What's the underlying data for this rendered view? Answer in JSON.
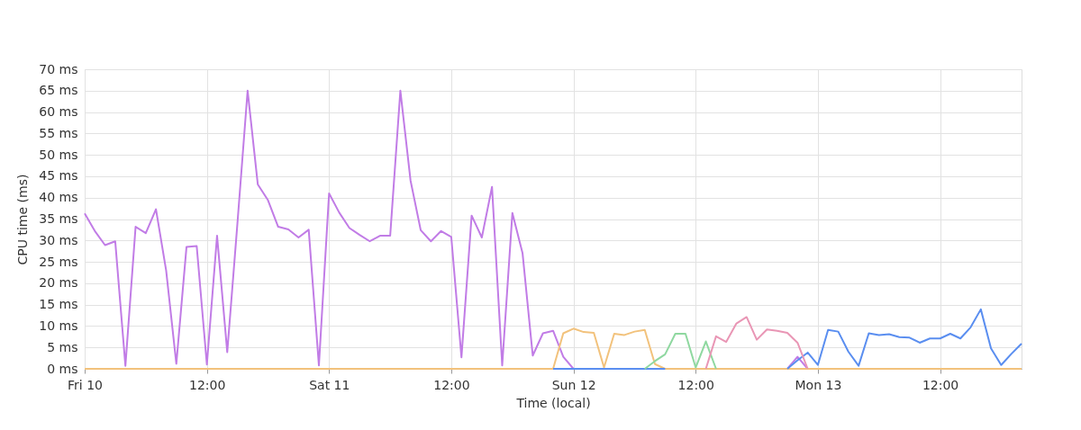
{
  "chart_data": {
    "type": "line",
    "xlabel": "Time (local)",
    "ylabel": "CPU time (ms)",
    "categories": [
      "Fri 10",
      null,
      null,
      null,
      null,
      null,
      null,
      null,
      null,
      null,
      null,
      null,
      "12:00",
      null,
      null,
      null,
      null,
      null,
      null,
      null,
      null,
      null,
      null,
      null,
      "Sat 11",
      null,
      null,
      null,
      null,
      null,
      null,
      null,
      null,
      null,
      null,
      null,
      "12:00",
      null,
      null,
      null,
      null,
      null,
      null,
      null,
      null,
      null,
      null,
      null,
      "Sun 12",
      null,
      null,
      null,
      null,
      null,
      null,
      null,
      null,
      null,
      null,
      null,
      "12:00",
      null,
      null,
      null,
      null,
      null,
      null,
      null,
      null,
      null,
      null,
      null,
      "Mon 13",
      null,
      null,
      null,
      null,
      null,
      null,
      null,
      null,
      null,
      null,
      null,
      "12:00",
      null,
      null,
      null,
      null,
      null,
      null,
      null,
      null
    ],
    "ylim": [
      0,
      70
    ],
    "yticks": [
      {
        "value": 0,
        "label": "0 ms"
      },
      {
        "value": 5,
        "label": "5 ms"
      },
      {
        "value": 10,
        "label": "10 ms"
      },
      {
        "value": 15,
        "label": "15 ms"
      },
      {
        "value": 20,
        "label": "20 ms"
      },
      {
        "value": 25,
        "label": "25 ms"
      },
      {
        "value": 30,
        "label": "30 ms"
      },
      {
        "value": 35,
        "label": "35 ms"
      },
      {
        "value": 40,
        "label": "40 ms"
      },
      {
        "value": 45,
        "label": "45 ms"
      },
      {
        "value": 50,
        "label": "50 ms"
      },
      {
        "value": 55,
        "label": "55 ms"
      },
      {
        "value": 60,
        "label": "60 ms"
      },
      {
        "value": 65,
        "label": "65 ms"
      },
      {
        "value": 70,
        "label": "70 ms"
      }
    ],
    "grid": true,
    "line_style": "solid",
    "series": [
      {
        "color": "#c17ce6",
        "values": [
          36.3,
          32.2,
          28.9,
          29.8,
          0.7,
          33.2,
          31.7,
          37.3,
          23,
          1.2,
          28.5,
          28.7,
          1.0,
          31.1,
          3.9,
          34,
          65,
          43.1,
          39.4,
          33.2,
          32.6,
          30.7,
          32.5,
          0.8,
          41.0,
          36.5,
          32.9,
          31.3,
          29.8,
          31.1,
          31.1,
          65,
          44,
          32.4,
          29.8,
          32.2,
          30.8,
          2.7,
          35.8,
          30.7,
          42.5,
          0.8,
          36.4,
          27.0,
          3.1,
          8.3,
          8.9,
          2.8,
          0,
          null,
          null,
          null,
          null,
          null,
          null,
          null,
          null,
          null,
          null,
          null,
          null,
          null,
          null,
          null,
          null,
          null,
          null,
          null,
          null,
          0,
          2.8,
          0,
          null,
          null,
          null,
          null,
          null,
          null,
          null,
          null,
          null,
          null,
          null,
          null,
          null,
          null,
          null,
          null,
          null,
          null,
          null,
          null,
          null
        ]
      },
      {
        "color": "#f2c27c",
        "values": [
          0,
          0,
          0,
          0,
          0,
          0,
          0,
          0,
          0,
          0,
          0,
          0,
          0,
          0,
          0,
          0,
          0,
          0,
          0,
          0,
          0,
          0,
          0,
          0,
          0,
          0,
          0,
          0,
          0,
          0,
          0,
          0,
          0,
          0,
          0,
          0,
          0,
          0,
          0,
          0,
          0,
          0,
          0,
          0,
          0,
          0,
          0,
          8.3,
          9.4,
          8.6,
          8.4,
          0.3,
          8.2,
          7.9,
          8.7,
          9.1,
          1.1,
          0,
          0,
          0,
          0,
          0,
          0,
          0,
          0,
          0,
          0,
          0,
          0,
          0,
          0,
          0,
          0,
          0,
          0,
          0,
          0,
          0,
          0,
          0,
          0,
          0,
          0,
          0,
          0,
          0,
          0,
          0,
          0,
          0,
          0,
          0,
          0
        ]
      },
      {
        "color": "#5a8ef0",
        "values": [
          null,
          null,
          null,
          null,
          null,
          null,
          null,
          null,
          null,
          null,
          null,
          null,
          null,
          null,
          null,
          null,
          null,
          null,
          null,
          null,
          null,
          null,
          null,
          null,
          null,
          null,
          null,
          null,
          null,
          null,
          null,
          null,
          null,
          null,
          null,
          null,
          null,
          null,
          null,
          null,
          null,
          null,
          null,
          null,
          null,
          null,
          0,
          0,
          0,
          0,
          0,
          0,
          0,
          0,
          0,
          0,
          0,
          0,
          null,
          null,
          null,
          null,
          null,
          null,
          null,
          null,
          null,
          null,
          null,
          0,
          2.0,
          3.8,
          0.9,
          9.1,
          8.7,
          4.0,
          0.7,
          8.3,
          7.9,
          8.1,
          7.4,
          7.3,
          6.1,
          7.1,
          7.1,
          8.2,
          7.1,
          9.7,
          13.9,
          4.8,
          0.9,
          3.5,
          5.9
        ]
      },
      {
        "color": "#8fd8a0",
        "values": [
          null,
          null,
          null,
          null,
          null,
          null,
          null,
          null,
          null,
          null,
          null,
          null,
          null,
          null,
          null,
          null,
          null,
          null,
          null,
          null,
          null,
          null,
          null,
          null,
          null,
          null,
          null,
          null,
          null,
          null,
          null,
          null,
          null,
          null,
          null,
          null,
          null,
          null,
          null,
          null,
          null,
          null,
          null,
          null,
          null,
          null,
          null,
          null,
          null,
          null,
          null,
          null,
          null,
          null,
          null,
          0,
          1.8,
          3.4,
          8.2,
          8.2,
          0.3,
          6.4,
          0,
          null,
          null,
          null,
          null,
          null,
          null,
          null,
          null,
          null,
          null,
          null,
          null,
          null,
          null,
          null,
          null,
          null,
          null,
          null,
          null,
          null,
          null,
          null,
          null,
          null,
          null,
          null,
          null,
          null,
          null
        ]
      },
      {
        "color": "#e996b5",
        "values": [
          null,
          null,
          null,
          null,
          null,
          null,
          null,
          null,
          null,
          null,
          null,
          null,
          null,
          null,
          null,
          null,
          null,
          null,
          null,
          null,
          null,
          null,
          null,
          null,
          null,
          null,
          null,
          null,
          null,
          null,
          null,
          null,
          null,
          null,
          null,
          null,
          null,
          null,
          null,
          null,
          null,
          null,
          null,
          null,
          null,
          null,
          null,
          null,
          null,
          null,
          null,
          null,
          null,
          null,
          null,
          null,
          null,
          null,
          null,
          null,
          null,
          0,
          7.6,
          6.3,
          10.6,
          12.1,
          6.8,
          9.2,
          8.9,
          8.4,
          6.1,
          0,
          null,
          null,
          null,
          null,
          null,
          null,
          null,
          null,
          null,
          null,
          null,
          null,
          null,
          null,
          null,
          null,
          null,
          null,
          null,
          null,
          null
        ]
      }
    ]
  }
}
